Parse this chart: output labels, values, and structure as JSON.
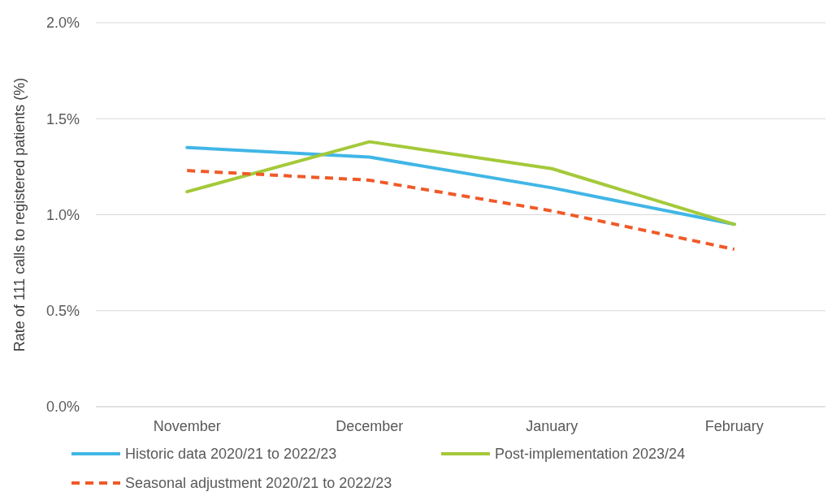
{
  "chart_data": {
    "type": "line",
    "ylabel": "Rate of 111 calls to registered patients (%)",
    "categories": [
      "November",
      "December",
      "January",
      "February"
    ],
    "series": [
      {
        "name": "Historic data 2020/21 to 2022/23",
        "color": "#41b6e6",
        "values": [
          1.35,
          1.3,
          1.14,
          0.95
        ]
      },
      {
        "name": "Post-implementation 2023/24",
        "color": "#a4c93a",
        "values": [
          1.12,
          1.38,
          1.24,
          0.95
        ]
      },
      {
        "name": "Seasonal adjustment 2020/21 to 2022/23",
        "color": "#f05a28",
        "values": [
          1.23,
          1.18,
          1.02,
          0.82
        ],
        "line_style": "dashed"
      }
    ],
    "ylim": [
      0,
      2
    ],
    "yticks": [
      {
        "value": 0,
        "label": "0.0%"
      },
      {
        "value": 0.5,
        "label": "0.5%"
      },
      {
        "value": 1,
        "label": "1.0%"
      },
      {
        "value": 1.5,
        "label": "1.5%"
      },
      {
        "value": 2,
        "label": "2.0%"
      }
    ],
    "grid": "y",
    "legend": "bottom",
    "marker": "none"
  }
}
